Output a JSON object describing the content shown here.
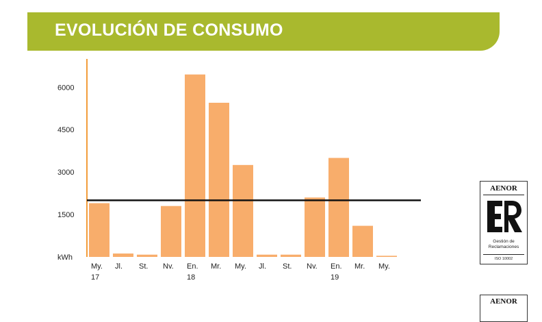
{
  "header": {
    "title": "EVOLUCIÓN DE CONSUMO"
  },
  "colors": {
    "banner": "#a9b92e",
    "bar": "#f8ad6b",
    "axis": "#f39c3a",
    "reference_line": "#111111"
  },
  "chart_data": {
    "type": "bar",
    "title": "",
    "xlabel": "",
    "ylabel": "kWh",
    "categories": [
      {
        "month": "My.",
        "year": "17"
      },
      {
        "month": "Jl.",
        "year": ""
      },
      {
        "month": "St.",
        "year": ""
      },
      {
        "month": "Nv.",
        "year": ""
      },
      {
        "month": "En.",
        "year": "18"
      },
      {
        "month": "Mr.",
        "year": ""
      },
      {
        "month": "My.",
        "year": ""
      },
      {
        "month": "Jl.",
        "year": ""
      },
      {
        "month": "St.",
        "year": ""
      },
      {
        "month": "Nv.",
        "year": ""
      },
      {
        "month": "En.",
        "year": "19"
      },
      {
        "month": "Mr.",
        "year": ""
      },
      {
        "month": "My.",
        "year": ""
      }
    ],
    "values": [
      1900,
      120,
      80,
      1800,
      6450,
      5450,
      3250,
      80,
      80,
      2100,
      3500,
      1100,
      40
    ],
    "ylim": [
      0,
      7000
    ],
    "yticks": [
      {
        "value": 0,
        "label": "kWh"
      },
      {
        "value": 1500,
        "label": "1500"
      },
      {
        "value": 3000,
        "label": "3000"
      },
      {
        "value": 4500,
        "label": "4500"
      },
      {
        "value": 6000,
        "label": "6000"
      }
    ],
    "reference_line": 2000,
    "grid": false,
    "legend": "none"
  },
  "certificate": {
    "brand": "AENOR",
    "caption_line1": "Gestión de",
    "caption_line2": "Reclamaciones",
    "code": "ISO 10002"
  },
  "certificate_second": {
    "brand": "AENOR"
  }
}
